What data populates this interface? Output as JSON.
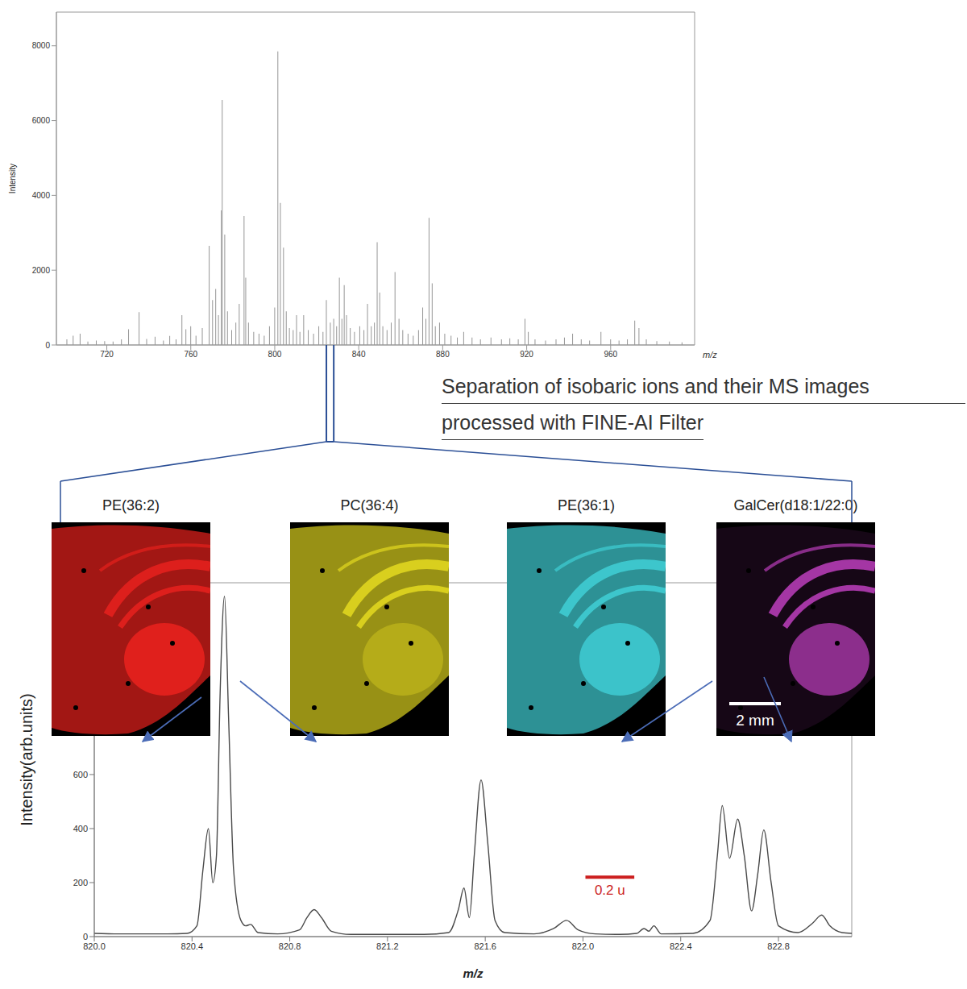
{
  "chart_data": [
    {
      "type": "bar",
      "x": [
        701,
        704,
        707.3,
        711,
        715,
        719,
        723,
        727,
        730.4,
        735.4,
        739,
        743,
        747,
        750,
        753,
        755.8,
        757.7,
        760,
        762.5,
        765.5,
        768.8,
        770.4,
        771.9,
        773.2,
        774.6,
        775.0,
        776.2,
        777.5,
        779.5,
        781.5,
        783.1,
        785.4,
        786.2,
        787.5,
        790,
        792.5,
        795,
        797.5,
        800.0,
        801.5,
        802.7,
        804.2,
        805.5,
        807,
        808.8,
        810.4,
        812,
        813.8,
        816,
        818.5,
        821,
        823,
        824.6,
        826.5,
        828.1,
        829.5,
        830.8,
        832,
        833.1,
        834.2,
        836,
        838,
        840.5,
        842.5,
        844.2,
        846,
        847.5,
        848.8,
        850.0,
        851.5,
        853.5,
        855.5,
        857.3,
        859.2,
        861,
        863.5,
        866,
        868.5,
        870.5,
        872,
        873.5,
        875.0,
        876.5,
        878.5,
        881,
        884,
        887,
        890,
        894,
        898,
        903,
        908,
        912,
        916,
        919.2,
        920.8,
        924,
        929,
        934,
        938,
        941.9,
        946,
        950,
        955.4,
        960,
        964,
        968,
        971.5,
        973.5,
        977,
        982,
        988,
        994
      ],
      "values": [
        150,
        250,
        300,
        90,
        120,
        100,
        90,
        150,
        420,
        880,
        160,
        220,
        120,
        240,
        150,
        800,
        420,
        500,
        250,
        450,
        2650,
        1200,
        1500,
        800,
        3600,
        6550,
        2950,
        900,
        400,
        600,
        1100,
        3450,
        1800,
        600,
        350,
        300,
        250,
        500,
        1000,
        7850,
        3800,
        2600,
        900,
        450,
        400,
        800,
        350,
        800,
        400,
        300,
        500,
        350,
        1200,
        600,
        700,
        500,
        1800,
        700,
        1600,
        800,
        450,
        350,
        500,
        400,
        1100,
        500,
        600,
        2750,
        1400,
        500,
        400,
        600,
        1950,
        700,
        400,
        300,
        250,
        400,
        1000,
        700,
        3400,
        1650,
        500,
        600,
        300,
        250,
        200,
        350,
        200,
        150,
        200,
        150,
        180,
        150,
        700,
        350,
        150,
        120,
        150,
        200,
        300,
        150,
        120,
        350,
        150,
        120,
        150,
        650,
        450,
        150,
        100,
        90,
        70
      ],
      "color": "#8f8f8f",
      "xlim": [
        696,
        1000
      ],
      "ylim": [
        0,
        8900
      ],
      "xticks": [
        720,
        760,
        800,
        840,
        880,
        920,
        960
      ],
      "yticks": [
        0,
        2000,
        4000,
        6000,
        8000
      ],
      "x_label": "m/z",
      "y_label": "Intensity",
      "grid": false,
      "zoom_range": [
        824.6,
        828.1
      ],
      "zoom_color": "#2b4f96"
    },
    {
      "type": "line",
      "x": [
        820.0,
        820.1,
        820.2,
        820.3,
        820.38,
        820.42,
        820.445,
        820.467,
        820.485,
        820.5,
        820.515,
        820.533,
        820.55,
        820.57,
        820.6,
        820.62,
        820.64,
        820.67,
        820.75,
        820.84,
        820.87,
        820.9,
        820.93,
        820.97,
        821.05,
        821.2,
        821.35,
        821.45,
        821.49,
        821.513,
        821.535,
        821.555,
        821.583,
        821.61,
        821.64,
        821.68,
        821.8,
        821.88,
        821.933,
        821.98,
        822.05,
        822.15,
        822.22,
        822.25,
        822.27,
        822.29,
        822.32,
        822.45,
        822.52,
        822.55,
        822.57,
        822.6,
        822.633,
        822.66,
        822.69,
        822.715,
        822.74,
        822.77,
        822.8,
        822.88,
        822.94,
        822.977,
        823.01,
        823.06,
        823.1
      ],
      "values": [
        12,
        10,
        10,
        10,
        12,
        40,
        250,
        400,
        200,
        300,
        900,
        1260,
        800,
        250,
        60,
        40,
        45,
        15,
        10,
        25,
        70,
        100,
        70,
        20,
        8,
        8,
        8,
        15,
        100,
        180,
        70,
        300,
        580,
        350,
        60,
        15,
        10,
        30,
        60,
        25,
        10,
        8,
        12,
        30,
        20,
        40,
        10,
        12,
        60,
        300,
        485,
        290,
        435,
        300,
        95,
        230,
        395,
        200,
        40,
        15,
        50,
        80,
        40,
        15,
        12
      ],
      "color": "#4a4a4a",
      "xlim": [
        820.0,
        823.1
      ],
      "ylim": [
        0,
        1310
      ],
      "xticks": [
        {
          "value": 820,
          "label": "820.0"
        },
        820.4,
        820.8,
        821.2,
        821.6,
        {
          "value": 822,
          "label": "822.0"
        },
        822.4,
        822.8
      ],
      "yticks": [
        0,
        200,
        400,
        600
      ],
      "x_label": "m/z",
      "y_label": "Intensity(arb.units)",
      "grid": false,
      "scale_bar": {
        "label": "0.2 u",
        "length": 0.2,
        "x": 822.01,
        "y": 220,
        "color": "#cc1f1f"
      }
    }
  ],
  "caption": [
    "Separation of isobaric ions and their MS images",
    "processed with FINE-AI Filter"
  ],
  "images": [
    {
      "title": "PE(36:2)",
      "color": "#e0201c"
    },
    {
      "title": "PC(36:4)",
      "color": "#d9cf1e"
    },
    {
      "title": "PE(36:1)",
      "color": "#3ec9cf"
    },
    {
      "title": "GalCer(d18:1/22:0)",
      "color": "#b43cb4",
      "scale_bar": "2 mm"
    }
  ]
}
